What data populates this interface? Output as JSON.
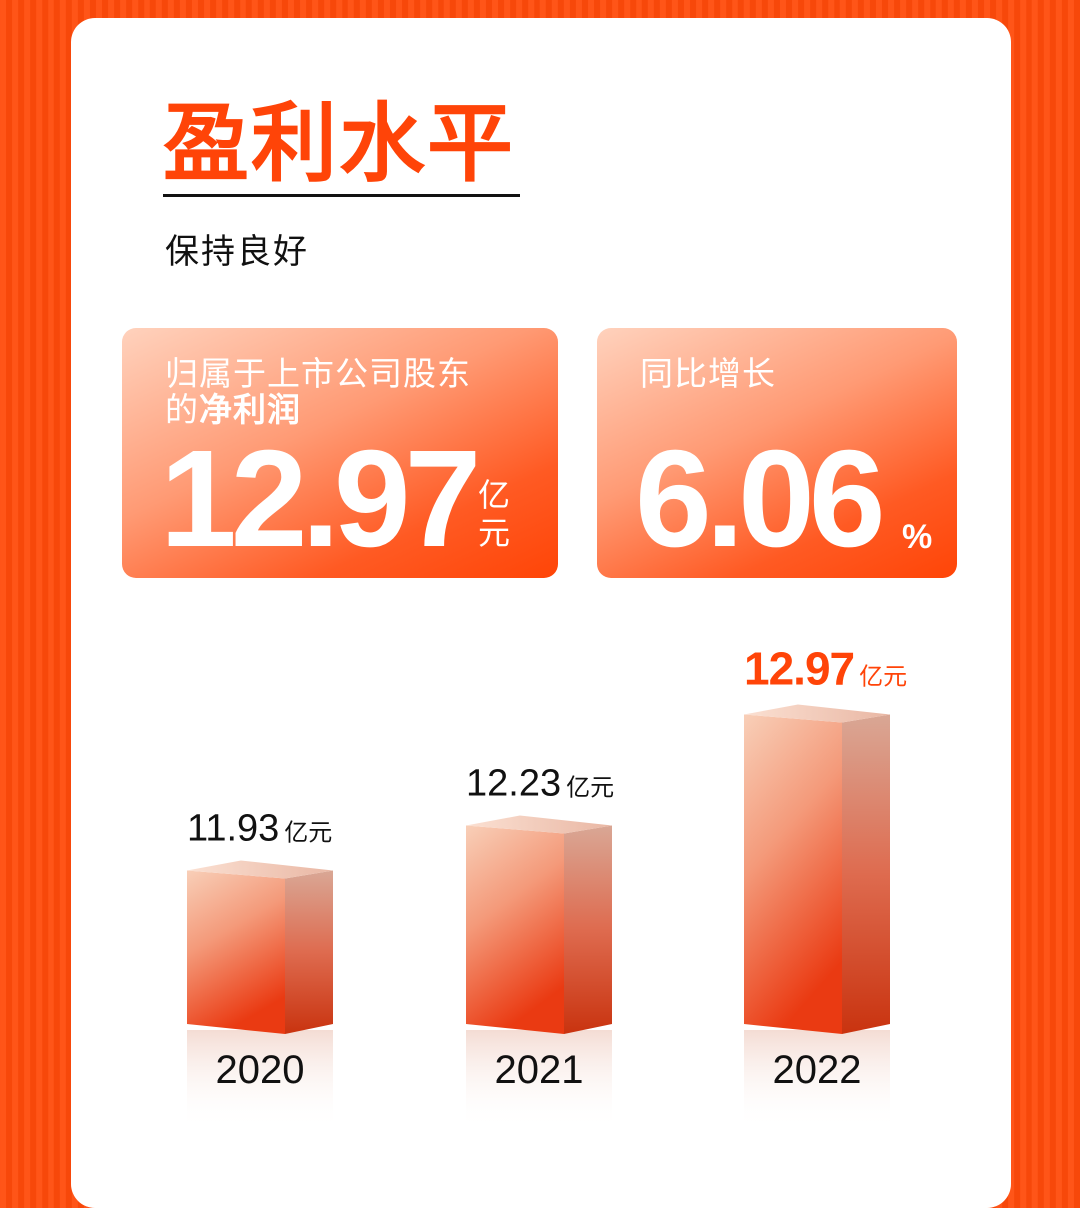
{
  "header": {
    "title": "盈利水平",
    "subtitle": "保持良好"
  },
  "stats": {
    "profit": {
      "label_line1": "归属于上市公司股东",
      "label_line2_prefix": "的",
      "label_line2_bold": "净利润",
      "value": "12.97",
      "unit_top": "亿",
      "unit_bottom": "元"
    },
    "growth": {
      "label": "同比增长",
      "value": "6.06",
      "unit": "%"
    }
  },
  "colors": {
    "accent": "#ff4408",
    "highlight_label": "#ff4408",
    "text": "#111111"
  },
  "chart_data": {
    "type": "bar",
    "categories": [
      "2020",
      "2021",
      "2022"
    ],
    "values": [
      11.93,
      12.23,
      12.97
    ],
    "value_labels": [
      "11.93",
      "12.23",
      "12.97"
    ],
    "unit": "亿元",
    "highlight_index": 2
  }
}
